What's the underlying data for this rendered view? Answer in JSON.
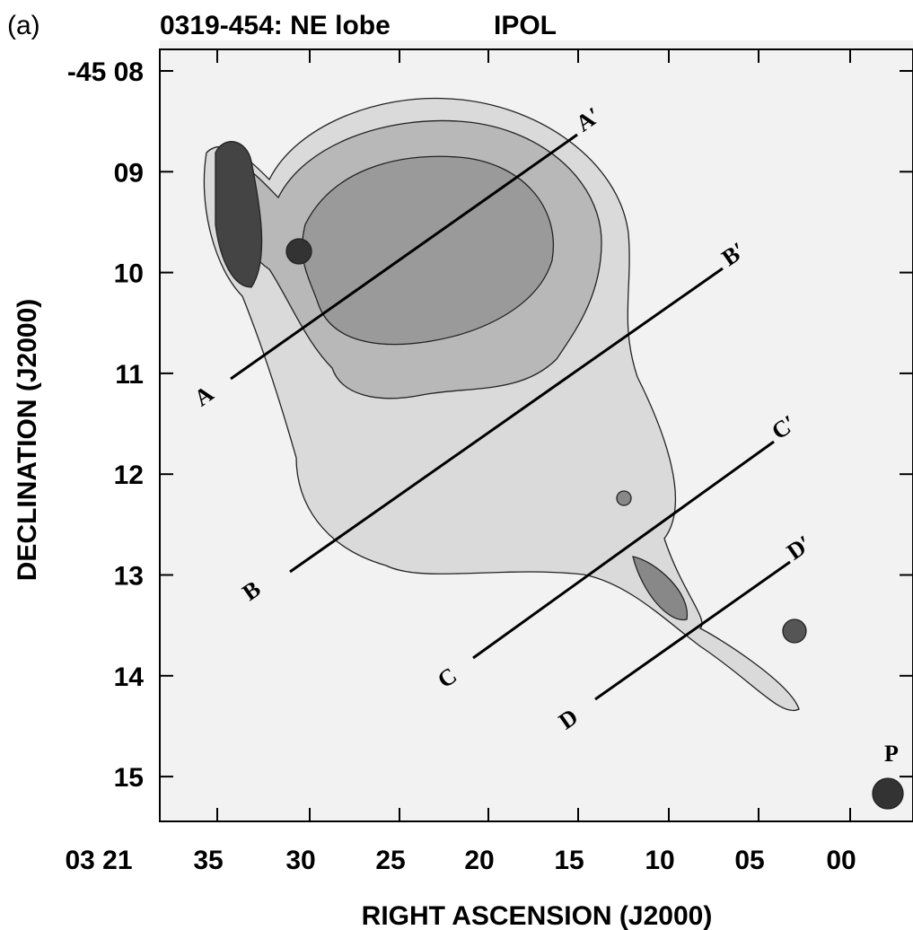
{
  "panel_label": "(a)",
  "title": "0319-454: NE lobe",
  "mode": "IPOL",
  "x_axis": {
    "label": "RIGHT ASCENSION (J2000)",
    "tick_labels": [
      "03 21",
      "35",
      "30",
      "25",
      "20",
      "15",
      "10",
      "05",
      "00"
    ]
  },
  "y_axis": {
    "label": "DECLINATION (J2000)",
    "tick_labels": [
      "-45 08",
      "09",
      "10",
      "11",
      "12",
      "13",
      "14",
      "15"
    ]
  },
  "cuts": [
    {
      "start": "A",
      "end": "A′"
    },
    {
      "start": "B",
      "end": "B′"
    },
    {
      "start": "C",
      "end": "C′"
    },
    {
      "start": "D",
      "end": "D′"
    }
  ],
  "source_label": "P"
}
